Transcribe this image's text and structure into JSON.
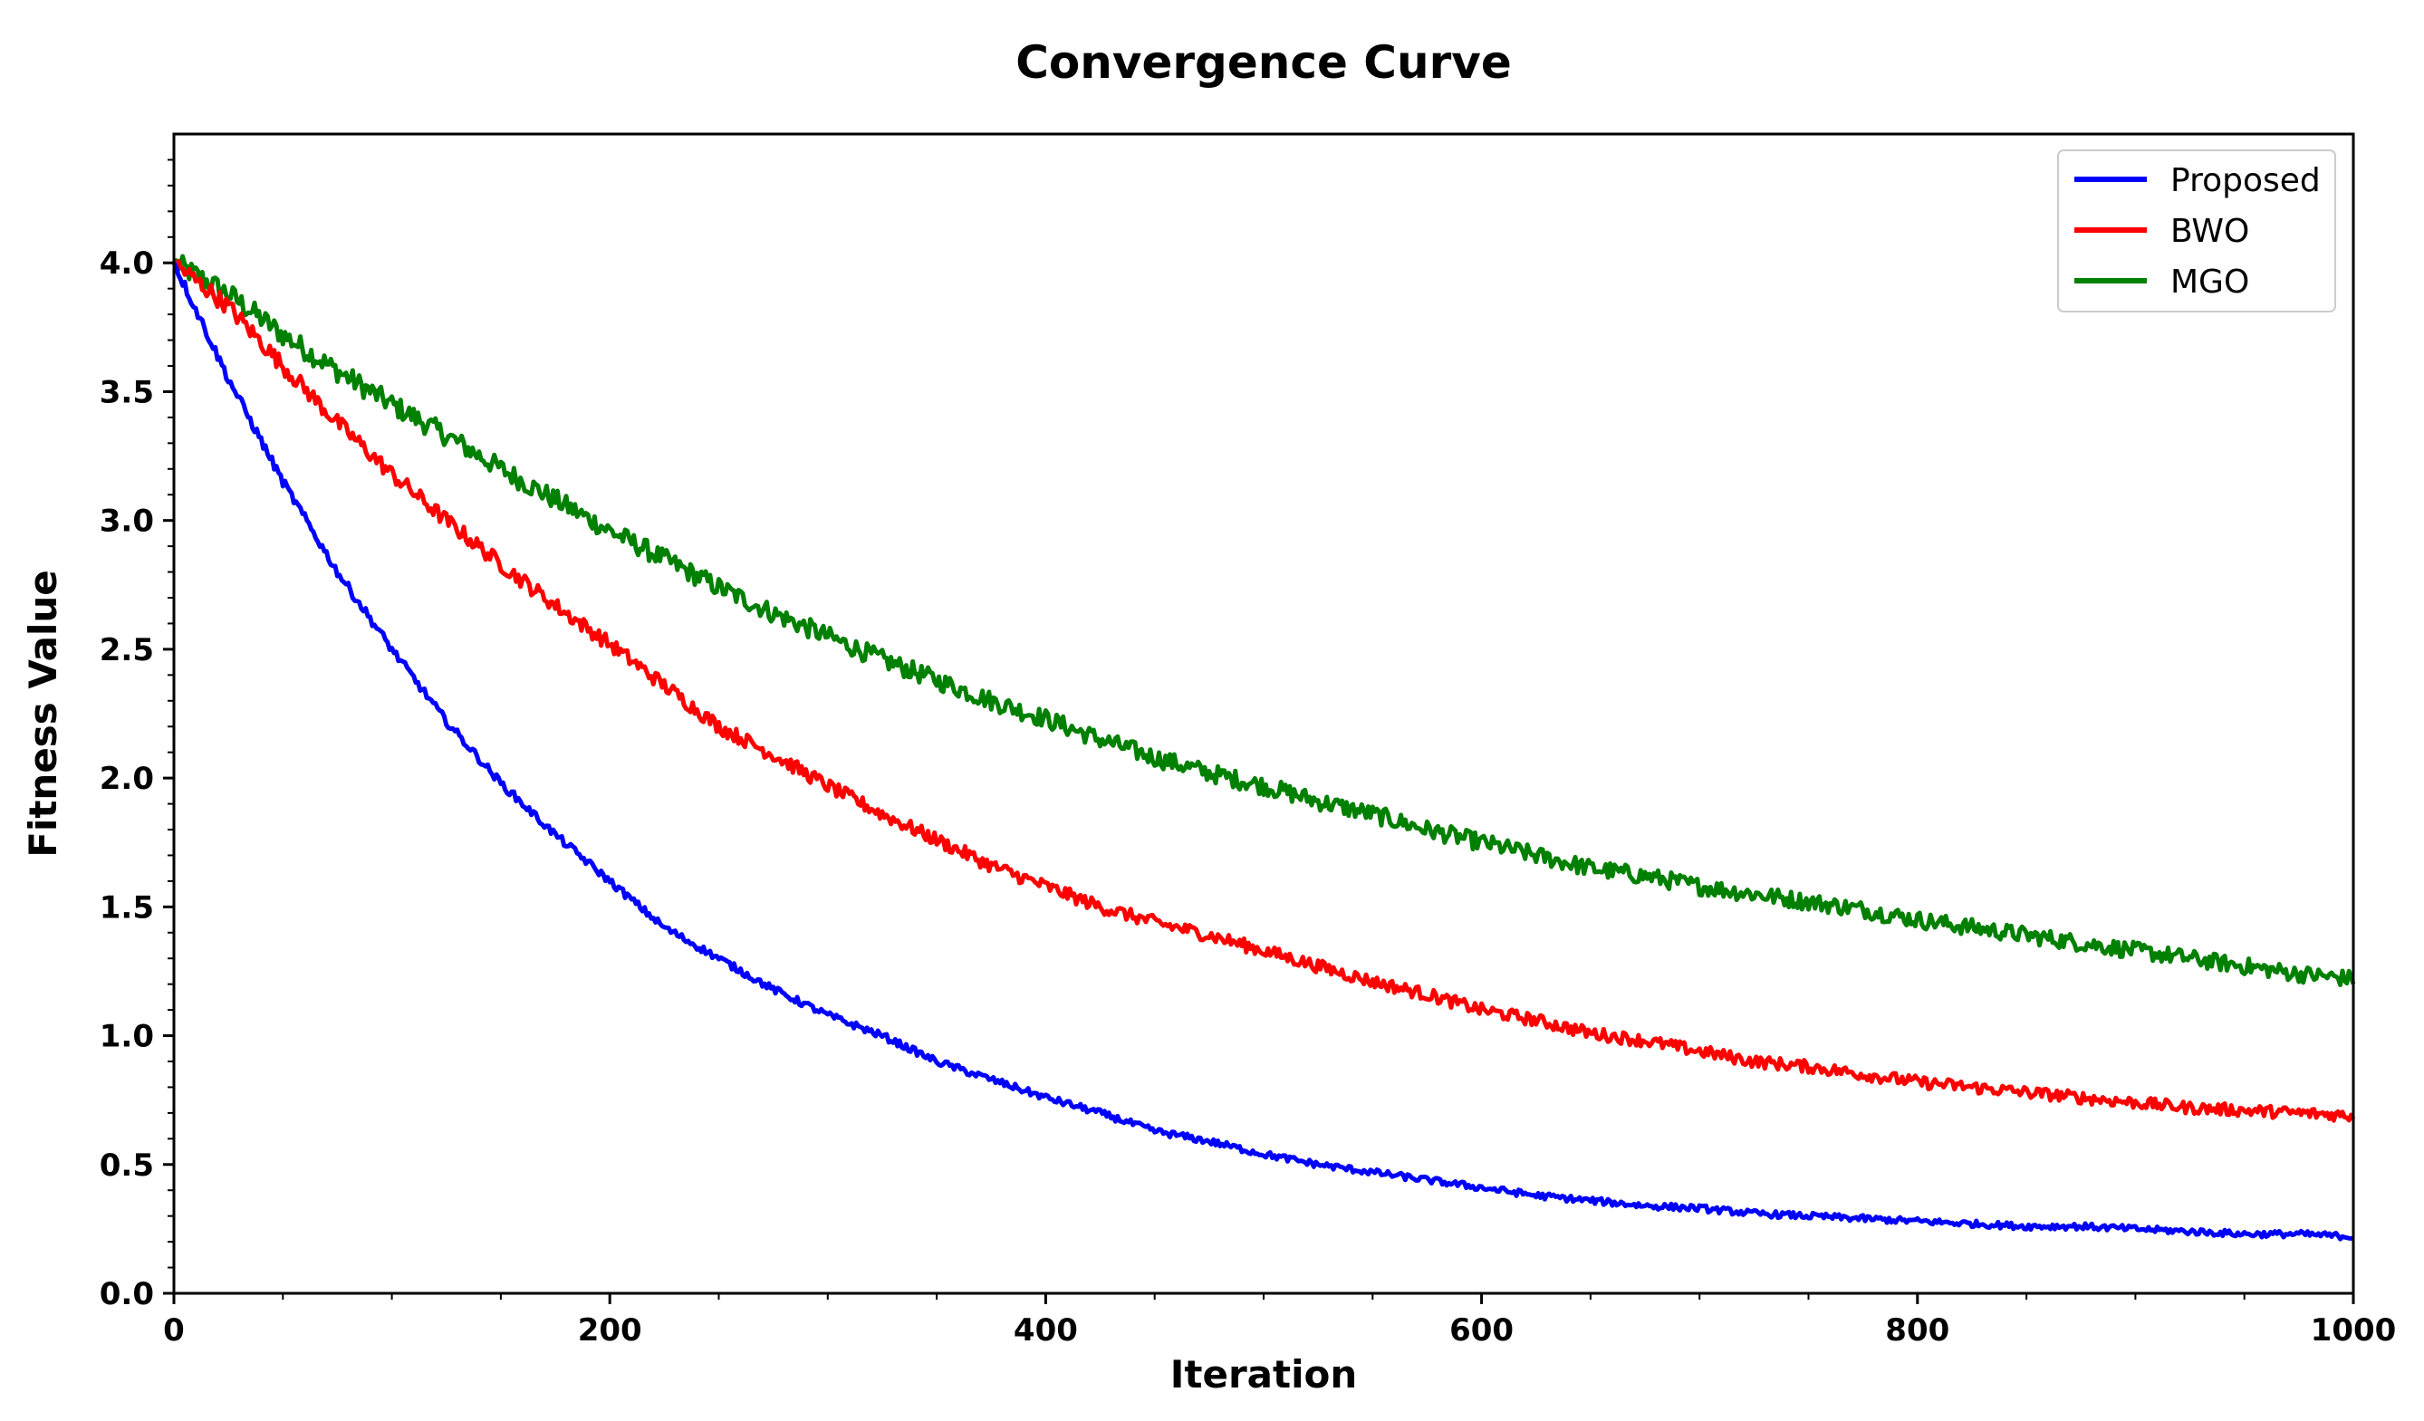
{
  "chart_data": {
    "type": "line",
    "title": "Convergence Curve",
    "xlabel": "Iteration",
    "ylabel": "Fitness Value",
    "xlim": [
      0,
      1000
    ],
    "ylim": [
      0,
      4.5
    ],
    "xticks": [
      0,
      200,
      400,
      600,
      800,
      1000
    ],
    "xtick_labels": [
      "0",
      "200",
      "400",
      "600",
      "800",
      "1000"
    ],
    "yticks": [
      0.0,
      0.5,
      1.0,
      1.5,
      2.0,
      2.5,
      3.0,
      3.5,
      4.0
    ],
    "ytick_labels": [
      "0.0",
      "0.5",
      "1.0",
      "1.5",
      "2.0",
      "2.5",
      "3.0",
      "3.5",
      "4.0"
    ],
    "grid": false,
    "legend_position": "top-right",
    "x": [
      0,
      25,
      50,
      75,
      100,
      125,
      150,
      175,
      200,
      225,
      250,
      275,
      300,
      325,
      350,
      375,
      400,
      425,
      450,
      475,
      500,
      525,
      550,
      575,
      600,
      625,
      650,
      675,
      700,
      725,
      750,
      775,
      800,
      825,
      850,
      875,
      900,
      925,
      950,
      975,
      1000
    ],
    "series": [
      {
        "name": "Proposed",
        "color": "#0000ff",
        "noise": 0.02,
        "values": [
          4.0,
          3.55,
          3.15,
          2.8,
          2.5,
          2.22,
          1.98,
          1.78,
          1.6,
          1.42,
          1.3,
          1.18,
          1.08,
          1.0,
          0.9,
          0.83,
          0.76,
          0.7,
          0.63,
          0.59,
          0.54,
          0.5,
          0.47,
          0.44,
          0.41,
          0.38,
          0.36,
          0.34,
          0.33,
          0.31,
          0.3,
          0.29,
          0.28,
          0.27,
          0.26,
          0.26,
          0.25,
          0.24,
          0.23,
          0.23,
          0.22
        ]
      },
      {
        "name": "BWO",
        "color": "#ff0000",
        "noise": 0.035,
        "values": [
          4.0,
          3.83,
          3.6,
          3.38,
          3.18,
          3.0,
          2.83,
          2.67,
          2.52,
          2.36,
          2.2,
          2.09,
          1.97,
          1.86,
          1.76,
          1.66,
          1.58,
          1.5,
          1.44,
          1.39,
          1.33,
          1.27,
          1.21,
          1.16,
          1.1,
          1.06,
          1.01,
          0.98,
          0.94,
          0.9,
          0.88,
          0.85,
          0.82,
          0.8,
          0.78,
          0.76,
          0.74,
          0.72,
          0.71,
          0.7,
          0.69
        ]
      },
      {
        "name": "MGO",
        "color": "#008000",
        "noise": 0.045,
        "values": [
          4.0,
          3.88,
          3.72,
          3.58,
          3.45,
          3.33,
          3.2,
          3.08,
          2.96,
          2.85,
          2.74,
          2.64,
          2.55,
          2.46,
          2.38,
          2.3,
          2.23,
          2.15,
          2.08,
          2.02,
          1.97,
          1.91,
          1.86,
          1.8,
          1.75,
          1.7,
          1.65,
          1.62,
          1.58,
          1.55,
          1.52,
          1.49,
          1.45,
          1.42,
          1.39,
          1.36,
          1.33,
          1.3,
          1.27,
          1.24,
          1.22
        ]
      }
    ]
  }
}
